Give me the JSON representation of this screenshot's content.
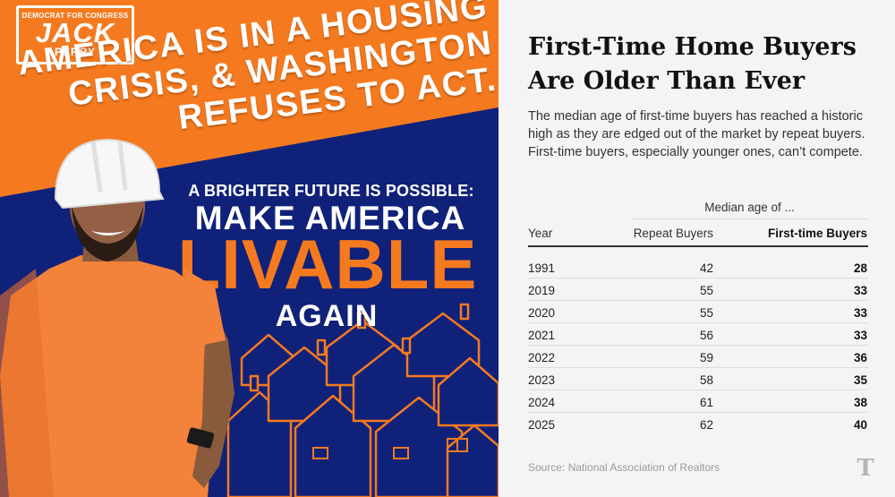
{
  "ad": {
    "logo_top": "DEMOCRAT FOR CONGRESS",
    "logo_name": "JACK",
    "logo_last": "PERRY",
    "headline_lines": [
      "AMERICA IS IN A HOUSING",
      "CRISIS, & WASHINGTON",
      "REFUSES TO ACT."
    ],
    "sub1": "A BRIGHTER FUTURE IS POSSIBLE:",
    "sub2": "MAKE AMERICA",
    "sub3": "LIVABLE",
    "sub4": "AGAIN",
    "colors": {
      "orange": "#f57a1f",
      "navy": "#10217a",
      "white": "#ffffff"
    }
  },
  "article": {
    "title_line1": "First-Time Home Buyers",
    "title_line2": "Are Older Than Ever",
    "description": "The median age of first-time buyers has reached a historic high as they are edged out of the market by repeat buyers. First-time buyers, especially younger ones, can’t compete.",
    "group_label": "Median age of ...",
    "columns": {
      "year": "Year",
      "repeat": "Repeat Buyers",
      "first": "First-time Buyers"
    },
    "rows": [
      {
        "year": "1991",
        "repeat": "42",
        "first": "28"
      },
      {
        "year": "2019",
        "repeat": "55",
        "first": "33"
      },
      {
        "year": "2020",
        "repeat": "55",
        "first": "33"
      },
      {
        "year": "2021",
        "repeat": "56",
        "first": "33"
      },
      {
        "year": "2022",
        "repeat": "59",
        "first": "36"
      },
      {
        "year": "2023",
        "repeat": "58",
        "first": "35"
      },
      {
        "year": "2024",
        "repeat": "61",
        "first": "38"
      },
      {
        "year": "2025",
        "repeat": "62",
        "first": "40"
      }
    ],
    "source": "Source: National Association of Realtors",
    "logo_glyph": "T",
    "logo_icon": "nyt-t-icon"
  }
}
